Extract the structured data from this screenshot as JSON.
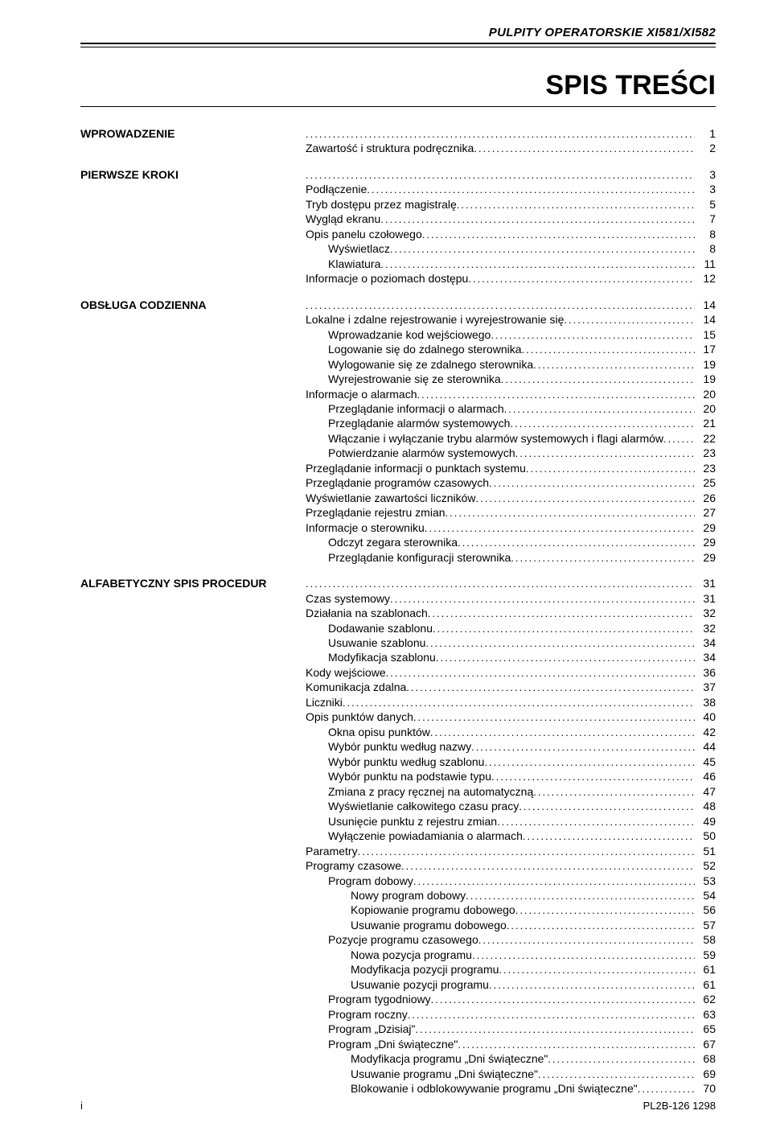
{
  "header": "PULPITY OPERATORSKIE XI581/XI582",
  "title": "SPIS TREŚCI",
  "sections": [
    {
      "heading": "WPROWADZENIE",
      "headingPage": "1",
      "entries": [
        {
          "text": "Zawartość i struktura podręcznika",
          "page": "2",
          "indent": 0
        }
      ]
    },
    {
      "heading": "PIERWSZE KROKI",
      "headingPage": "3",
      "entries": [
        {
          "text": "Podłączenie",
          "page": "3",
          "indent": 0
        },
        {
          "text": "Tryb dostępu przez magistralę",
          "page": "5",
          "indent": 0
        },
        {
          "text": "Wygląd ekranu",
          "page": "7",
          "indent": 0
        },
        {
          "text": "Opis panelu czołowego",
          "page": "8",
          "indent": 0
        },
        {
          "text": "Wyświetlacz",
          "page": "8",
          "indent": 1
        },
        {
          "text": "Klawiatura",
          "page": "11",
          "indent": 1
        },
        {
          "text": "Informacje o poziomach dostępu",
          "page": "12",
          "indent": 0
        }
      ]
    },
    {
      "heading": "OBSŁUGA CODZIENNA",
      "headingPage": "14",
      "entries": [
        {
          "text": "Lokalne i zdalne rejestrowanie i wyrejestrowanie się",
          "page": "14",
          "indent": 0
        },
        {
          "text": "Wprowadzanie kod wejściowego",
          "page": "15",
          "indent": 1
        },
        {
          "text": "Logowanie się do zdalnego sterownika",
          "page": "17",
          "indent": 1
        },
        {
          "text": "Wylogowanie się ze zdalnego sterownika",
          "page": "19",
          "indent": 1
        },
        {
          "text": "Wyrejestrowanie się ze sterownika",
          "page": "19",
          "indent": 1
        },
        {
          "text": "Informacje o alarmach",
          "page": "20",
          "indent": 0
        },
        {
          "text": "Przeglądanie informacji o alarmach",
          "page": "20",
          "indent": 1
        },
        {
          "text": "Przeglądanie alarmów systemowych",
          "page": "21",
          "indent": 1
        },
        {
          "text": "Włączanie i wyłączanie trybu alarmów systemowych i flagi alarmów",
          "page": "22",
          "indent": 1
        },
        {
          "text": "Potwierdzanie alarmów systemowych",
          "page": "23",
          "indent": 1
        },
        {
          "text": "Przeglądanie informacji o punktach systemu",
          "page": "23",
          "indent": 0
        },
        {
          "text": "Przeglądanie programów czasowych",
          "page": "25",
          "indent": 0
        },
        {
          "text": "Wyświetlanie zawartości liczników",
          "page": "26",
          "indent": 0
        },
        {
          "text": "Przeglądanie rejestru zmian",
          "page": "27",
          "indent": 0
        },
        {
          "text": "Informacje o sterowniku",
          "page": "29",
          "indent": 0
        },
        {
          "text": "Odczyt zegara sterownika",
          "page": "29",
          "indent": 1
        },
        {
          "text": "Przeglądanie konfiguracji sterownika",
          "page": "29",
          "indent": 1
        }
      ]
    },
    {
      "heading": "ALFABETYCZNY SPIS PROCEDUR",
      "headingPage": "31",
      "entries": [
        {
          "text": "Czas systemowy",
          "page": "31",
          "indent": 0
        },
        {
          "text": "Działania na szablonach",
          "page": "32",
          "indent": 0
        },
        {
          "text": "Dodawanie szablonu",
          "page": "32",
          "indent": 1
        },
        {
          "text": "Usuwanie szablonu",
          "page": "34",
          "indent": 1
        },
        {
          "text": "Modyfikacja szablonu",
          "page": "34",
          "indent": 1
        },
        {
          "text": "Kody wejściowe",
          "page": "36",
          "indent": 0
        },
        {
          "text": "Komunikacja zdalna",
          "page": "37",
          "indent": 0
        },
        {
          "text": "Liczniki",
          "page": "38",
          "indent": 0
        },
        {
          "text": "Opis punktów danych",
          "page": "40",
          "indent": 0
        },
        {
          "text": "Okna opisu punktów",
          "page": "42",
          "indent": 1
        },
        {
          "text": "Wybór punktu według nazwy",
          "page": "44",
          "indent": 1
        },
        {
          "text": "Wybór punktu według szablonu",
          "page": "45",
          "indent": 1
        },
        {
          "text": "Wybór punktu na podstawie typu",
          "page": "46",
          "indent": 1
        },
        {
          "text": "Zmiana z pracy ręcznej na automatyczną",
          "page": "47",
          "indent": 1
        },
        {
          "text": "Wyświetlanie całkowitego czasu pracy",
          "page": "48",
          "indent": 1
        },
        {
          "text": "Usunięcie punktu z rejestru zmian",
          "page": "49",
          "indent": 1
        },
        {
          "text": "Wyłączenie powiadamiania o alarmach",
          "page": "50",
          "indent": 1
        },
        {
          "text": "Parametry",
          "page": "51",
          "indent": 0
        },
        {
          "text": "Programy czasowe",
          "page": "52",
          "indent": 0
        },
        {
          "text": "Program dobowy",
          "page": "53",
          "indent": 1
        },
        {
          "text": "Nowy program dobowy",
          "page": "54",
          "indent": 2
        },
        {
          "text": "Kopiowanie programu dobowego",
          "page": "56",
          "indent": 2
        },
        {
          "text": "Usuwanie programu dobowego",
          "page": "57",
          "indent": 2
        },
        {
          "text": "Pozycje programu czasowego",
          "page": "58",
          "indent": 1
        },
        {
          "text": "Nowa pozycja programu",
          "page": "59",
          "indent": 2
        },
        {
          "text": "Modyfikacja pozycji programu",
          "page": "61",
          "indent": 2
        },
        {
          "text": "Usuwanie pozycji programu",
          "page": "61",
          "indent": 2
        },
        {
          "text": "Program tygodniowy",
          "page": "62",
          "indent": 1
        },
        {
          "text": "Program roczny",
          "page": "63",
          "indent": 1
        },
        {
          "text": "Program „Dzisiaj\"",
          "page": "65",
          "indent": 1
        },
        {
          "text": "Program „Dni świąteczne\"",
          "page": "67",
          "indent": 1
        },
        {
          "text": "Modyfikacja programu „Dni świąteczne\"",
          "page": "68",
          "indent": 2
        },
        {
          "text": "Usuwanie programu „Dni świąteczne\"",
          "page": "69",
          "indent": 2
        },
        {
          "text": "Blokowanie i odblokowywanie programu „Dni świąteczne\"",
          "page": "70",
          "indent": 2
        }
      ]
    }
  ],
  "footer": {
    "left": "i",
    "right": "PL2B-126 1298"
  }
}
